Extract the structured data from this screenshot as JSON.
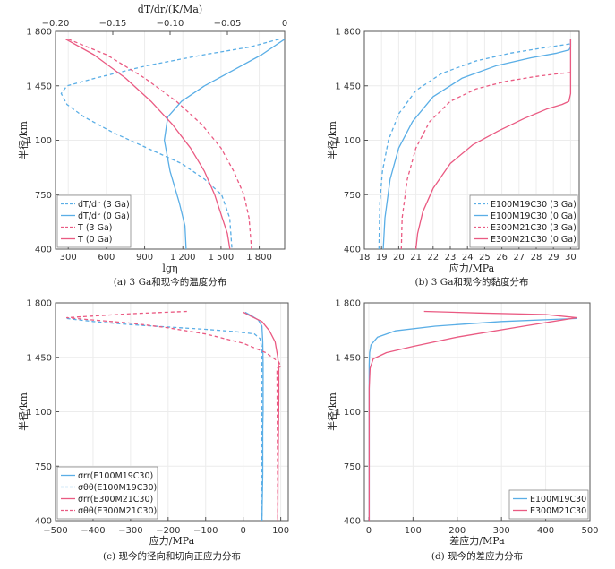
{
  "colors": {
    "blue": "#5aaee6",
    "pink": "#ea5a82",
    "axis": "#555555",
    "grid": "#ececec"
  },
  "chart_data": [
    {
      "type": "line",
      "caption": "(a) 3 Ga和现今的温度分布",
      "xlabel": "lgη",
      "ylabel": "半径/km",
      "top_xlabel": "dT/dr/(K/Ma)",
      "xlim": [
        200,
        2000
      ],
      "ylim": [
        400,
        1800
      ],
      "top_xlim": [
        -0.2,
        0
      ],
      "xticks": [
        "300",
        "600",
        "900",
        "1 200",
        "1 500",
        "1 800"
      ],
      "yticks": [
        "400",
        "750",
        "1 100",
        "1 450",
        "1 800"
      ],
      "top_xticks": [
        "−0.20",
        "−0.15",
        "−0.10",
        "−0.05",
        "0"
      ],
      "legend_pos": "bottom-left",
      "series": [
        {
          "name": "dT/dr (3 Ga)",
          "axis": "top",
          "color": "blue",
          "dash": true,
          "x": [
            -0.005,
            -0.03,
            -0.07,
            -0.12,
            -0.165,
            -0.19,
            -0.195,
            -0.19,
            -0.175,
            -0.15,
            -0.12,
            -0.09,
            -0.07,
            -0.055,
            -0.048,
            -0.046
          ],
          "y": [
            1750,
            1700,
            1650,
            1580,
            1500,
            1450,
            1400,
            1330,
            1250,
            1150,
            1050,
            950,
            850,
            750,
            600,
            400
          ]
        },
        {
          "name": "dT/dr (0 Ga)",
          "axis": "top",
          "color": "blue",
          "dash": false,
          "x": [
            0,
            -0.02,
            -0.045,
            -0.07,
            -0.09,
            -0.102,
            -0.105,
            -0.1,
            -0.092,
            -0.087,
            -0.086
          ],
          "y": [
            1750,
            1650,
            1550,
            1450,
            1350,
            1250,
            1100,
            900,
            700,
            550,
            400
          ]
        },
        {
          "name": "T (3 Ga)",
          "axis": "bottom",
          "color": "pink",
          "dash": true,
          "x": [
            300,
            600,
            900,
            1150,
            1350,
            1500,
            1600,
            1680,
            1720,
            1740
          ],
          "y": [
            1750,
            1650,
            1500,
            1350,
            1200,
            1050,
            900,
            750,
            600,
            400
          ]
        },
        {
          "name": "T (0 Ga)",
          "axis": "bottom",
          "color": "pink",
          "dash": false,
          "x": [
            280,
            500,
            750,
            950,
            1120,
            1260,
            1370,
            1450,
            1510,
            1550,
            1570
          ],
          "y": [
            1750,
            1650,
            1500,
            1350,
            1200,
            1050,
            900,
            750,
            600,
            500,
            400
          ]
        }
      ]
    },
    {
      "type": "line",
      "caption": "(b) 3 Ga和现今的黏度分布",
      "xlabel": "应力/MPa",
      "ylabel": "半径/km",
      "xlim": [
        18,
        30.5
      ],
      "ylim": [
        400,
        1800
      ],
      "xticks": [
        "18",
        "19",
        "20",
        "21",
        "22",
        "23",
        "24",
        "25",
        "26",
        "27",
        "28",
        "29",
        "30"
      ],
      "yticks": [
        "400",
        "750",
        "1 100",
        "1 450",
        "1 800"
      ],
      "legend_pos": "bottom-right",
      "series": [
        {
          "name": "E100M19C30 (3 Ga)",
          "color": "blue",
          "dash": true,
          "x": [
            18.85,
            18.9,
            19.05,
            19.4,
            20.0,
            21.0,
            22.5,
            24.5,
            26.5,
            28.5,
            30.0
          ],
          "y": [
            400,
            700,
            900,
            1100,
            1270,
            1420,
            1530,
            1610,
            1660,
            1695,
            1720
          ]
        },
        {
          "name": "E100M19C30 (0 Ga)",
          "color": "blue",
          "dash": false,
          "x": [
            19.1,
            19.2,
            19.5,
            20.0,
            20.8,
            22.0,
            23.7,
            25.7,
            27.7,
            29.2,
            29.9,
            30.0,
            30.0
          ],
          "y": [
            400,
            600,
            850,
            1050,
            1220,
            1380,
            1500,
            1580,
            1630,
            1660,
            1680,
            1700,
            1750
          ]
        },
        {
          "name": "E300M21C30 (3 Ga)",
          "color": "pink",
          "dash": true,
          "x": [
            20.15,
            20.2,
            20.5,
            21.0,
            21.8,
            23.0,
            24.5,
            26.3,
            28.0,
            29.4,
            30.0
          ],
          "y": [
            400,
            600,
            850,
            1050,
            1220,
            1350,
            1430,
            1480,
            1510,
            1530,
            1535
          ]
        },
        {
          "name": "E300M21C30 (0 Ga)",
          "color": "pink",
          "dash": false,
          "x": [
            21.0,
            21.1,
            21.4,
            22.0,
            23.0,
            24.3,
            25.8,
            27.3,
            28.6,
            29.5,
            29.9,
            30.0,
            30.0,
            30.0
          ],
          "y": [
            400,
            500,
            640,
            790,
            950,
            1070,
            1160,
            1240,
            1300,
            1330,
            1350,
            1400,
            1600,
            1750
          ]
        }
      ]
    },
    {
      "type": "line",
      "caption": "(c) 现今的径向和切向正应力分布",
      "xlabel": "应力/MPa",
      "ylabel": "半径/km",
      "xlim": [
        -500,
        120
      ],
      "ylim": [
        400,
        1800
      ],
      "xticks": [
        "−500",
        "−400",
        "−300",
        "−200",
        "−100",
        "0",
        "100"
      ],
      "yticks": [
        "400",
        "750",
        "1 100",
        "1 450",
        "1 800"
      ],
      "legend_pos": "bottom-left",
      "series": [
        {
          "name": "σrr(E100M19C30)",
          "color": "blue",
          "dash": false,
          "x": [
            5,
            20,
            40,
            50,
            52,
            53,
            53,
            52,
            52,
            50
          ],
          "y": [
            1740,
            1720,
            1690,
            1650,
            1550,
            1400,
            1100,
            1000,
            700,
            400
          ]
        },
        {
          "name": "σθθ(E100M19C30)",
          "color": "blue",
          "dash": true,
          "x": [
            -470,
            -400,
            -300,
            -200,
            -100,
            -20,
            30,
            45,
            50,
            50
          ],
          "y": [
            1700,
            1680,
            1660,
            1645,
            1630,
            1615,
            1600,
            1570,
            1500,
            400
          ]
        },
        {
          "name": "σrr(E300M21C30)",
          "color": "pink",
          "dash": false,
          "x": [
            0,
            20,
            50,
            70,
            85,
            92,
            95,
            95,
            93,
            92
          ],
          "y": [
            1740,
            1715,
            1680,
            1620,
            1550,
            1450,
            1380,
            1200,
            800,
            400
          ]
        },
        {
          "name": "σθθ(E300M21C30)",
          "color": "pink",
          "dash": true,
          "x": [
            -150,
            -300,
            -470,
            -400,
            -300,
            -200,
            -100,
            0,
            60,
            95,
            100,
            90,
            92
          ],
          "y": [
            1745,
            1730,
            1705,
            1690,
            1670,
            1640,
            1600,
            1540,
            1480,
            1420,
            1390,
            1380,
            400
          ]
        }
      ]
    },
    {
      "type": "line",
      "caption": "(d) 现今的差应力分布",
      "xlabel": "差应力/MPa",
      "ylabel": "半径/km",
      "xlim": [
        -10,
        500
      ],
      "ylim": [
        400,
        1800
      ],
      "xticks": [
        "0",
        "100",
        "200",
        "300",
        "400",
        "500"
      ],
      "yticks": [
        "400",
        "750",
        "1 100",
        "1 450",
        "1 800"
      ],
      "legend_pos": "bottom-right",
      "series": [
        {
          "name": "E100M19C30",
          "color": "blue",
          "dash": false,
          "x": [
            470,
            300,
            150,
            60,
            20,
            5,
            2,
            1,
            1
          ],
          "y": [
            1700,
            1680,
            1650,
            1620,
            1580,
            1530,
            1480,
            1400,
            400
          ]
        },
        {
          "name": "E300M21C30",
          "color": "pink",
          "dash": false,
          "x": [
            125,
            250,
            400,
            470,
            350,
            200,
            100,
            40,
            10,
            3,
            1,
            1
          ],
          "y": [
            1745,
            1735,
            1725,
            1705,
            1650,
            1580,
            1520,
            1480,
            1440,
            1380,
            1250,
            400
          ]
        }
      ]
    }
  ]
}
